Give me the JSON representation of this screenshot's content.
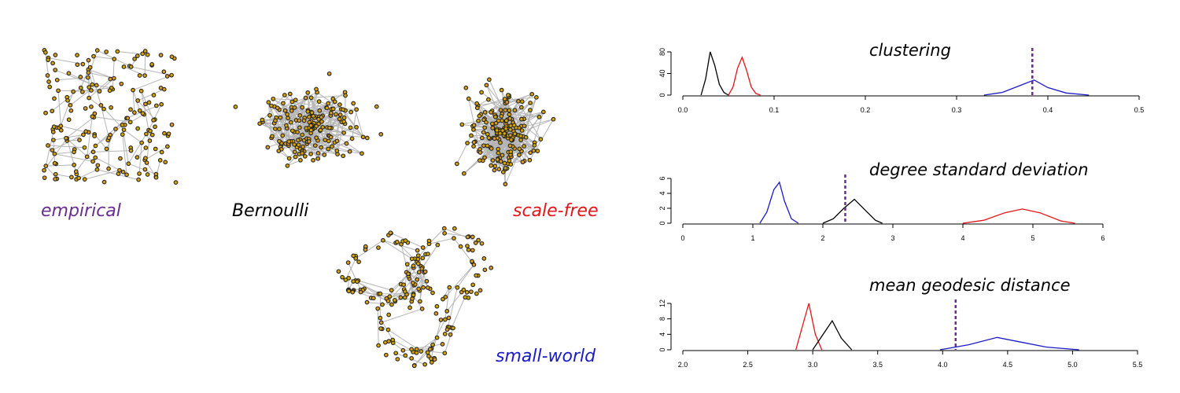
{
  "networks": [
    {
      "label": "empirical",
      "color": "#6a2d8f",
      "layout": "blob",
      "seed": 11,
      "nodes": 190
    },
    {
      "label": "Bernoulli",
      "color": "#000000",
      "layout": "radial",
      "seed": 23,
      "nodes": 190
    },
    {
      "label": "scale-free",
      "color": "#e3151a",
      "layout": "radial",
      "seed": 37,
      "nodes": 190
    },
    {
      "label": "small-world",
      "color": "#1b1bc8",
      "layout": "ring",
      "seed": 53,
      "nodes": 190
    }
  ],
  "chart_data": [
    {
      "type": "line",
      "title": "clustering",
      "xlim": [
        0,
        0.5
      ],
      "xticks": [
        "0.0",
        "0.1",
        "0.2",
        "0.3",
        "0.4",
        "0.5"
      ],
      "xtick_values": [
        0,
        0.1,
        0.2,
        0.3,
        0.4,
        0.5
      ],
      "ylim": [
        0,
        80
      ],
      "yticks": [
        "0",
        "40",
        "80"
      ],
      "ytick_values": [
        0,
        40,
        80
      ],
      "observed": 0.383,
      "series": [
        {
          "color": "#000000",
          "x": [
            0.02,
            0.025,
            0.03,
            0.035,
            0.04,
            0.045,
            0.05
          ],
          "y": [
            0,
            30,
            80,
            55,
            20,
            5,
            0
          ]
        },
        {
          "color": "#e3151a",
          "x": [
            0.05,
            0.055,
            0.06,
            0.065,
            0.07,
            0.075,
            0.08,
            0.085
          ],
          "y": [
            0,
            15,
            50,
            70,
            45,
            15,
            3,
            0
          ]
        },
        {
          "color": "#1b1bc8",
          "x": [
            0.33,
            0.35,
            0.37,
            0.385,
            0.4,
            0.42,
            0.445
          ],
          "y": [
            0,
            5,
            18,
            28,
            14,
            4,
            0
          ]
        }
      ]
    },
    {
      "type": "line",
      "title": "degree standard deviation",
      "xlim": [
        0,
        6
      ],
      "xticks": [
        "0",
        "1",
        "2",
        "3",
        "4",
        "5",
        "6"
      ],
      "xtick_values": [
        0,
        1,
        2,
        3,
        4,
        5,
        6
      ],
      "ylim": [
        0,
        6
      ],
      "yticks": [
        "0",
        "2",
        "4",
        "6"
      ],
      "ytick_values": [
        0,
        2,
        4,
        6
      ],
      "observed": 2.32,
      "series": [
        {
          "color": "#1b1bc8",
          "x": [
            1.1,
            1.2,
            1.3,
            1.38,
            1.45,
            1.55,
            1.65
          ],
          "y": [
            0,
            1.5,
            4.5,
            5.5,
            3,
            0.6,
            0
          ]
        },
        {
          "color": "#000000",
          "x": [
            2.0,
            2.15,
            2.3,
            2.45,
            2.6,
            2.75,
            2.85
          ],
          "y": [
            0,
            0.6,
            2,
            3.2,
            1.8,
            0.4,
            0
          ]
        },
        {
          "color": "#e3151a",
          "x": [
            4.0,
            4.3,
            4.6,
            4.85,
            5.1,
            5.4,
            5.6
          ],
          "y": [
            0,
            0.4,
            1.4,
            1.9,
            1.4,
            0.3,
            0
          ]
        }
      ]
    },
    {
      "type": "line",
      "title": "mean geodesic distance",
      "xlim": [
        2.0,
        5.5
      ],
      "xticks": [
        "2.0",
        "2.5",
        "3.0",
        "3.5",
        "4.0",
        "4.5",
        "5.0",
        "5.5"
      ],
      "xtick_values": [
        2.0,
        2.5,
        3.0,
        3.5,
        4.0,
        4.5,
        5.0,
        5.5
      ],
      "ylim": [
        0,
        12
      ],
      "yticks": [
        "0",
        "4",
        "8",
        "12"
      ],
      "ytick_values": [
        0,
        4,
        8,
        12
      ],
      "observed": 4.1,
      "series": [
        {
          "color": "#e3151a",
          "x": [
            2.87,
            2.92,
            2.97,
            3.02,
            3.07
          ],
          "y": [
            0,
            6,
            12,
            4,
            0
          ]
        },
        {
          "color": "#000000",
          "x": [
            3.0,
            3.08,
            3.15,
            3.22,
            3.3
          ],
          "y": [
            0,
            4,
            7.5,
            3,
            0
          ]
        },
        {
          "color": "#1b1bc8",
          "x": [
            3.98,
            4.2,
            4.42,
            4.6,
            4.8,
            5.05
          ],
          "y": [
            0,
            1.3,
            3.2,
            2,
            0.7,
            0
          ]
        }
      ]
    }
  ]
}
